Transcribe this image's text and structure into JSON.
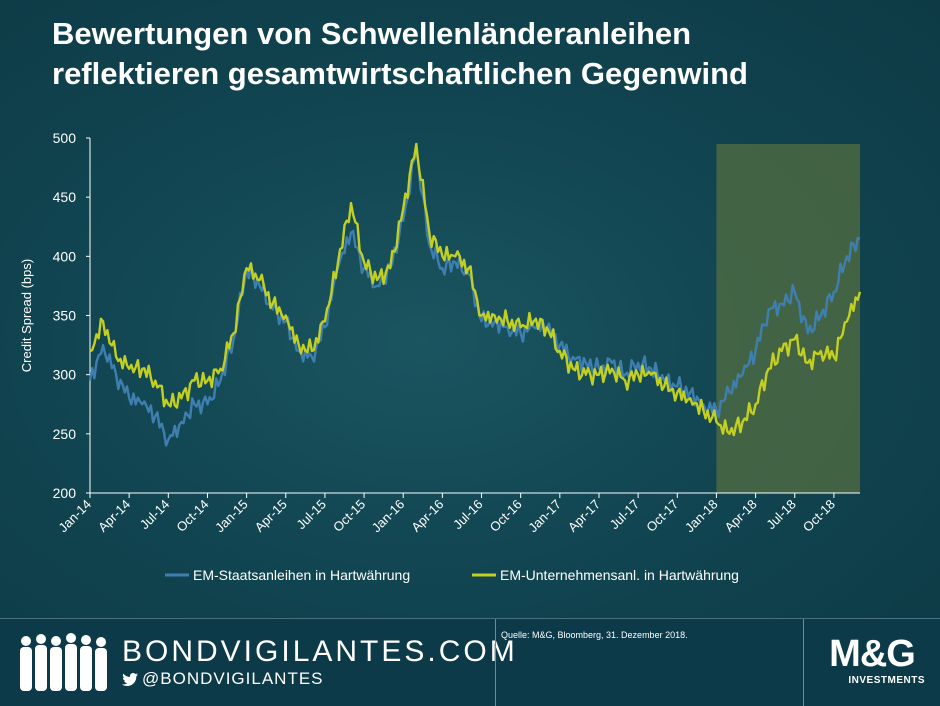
{
  "title_line1": "Bewertungen von Schwellenländeranleihen",
  "title_line2": "reflektieren gesamtwirtschaftlichen Gegenwind",
  "colors": {
    "sovereign": "#3f7fb0",
    "corporate": "#c3cf21",
    "highlight": "#6b7d3c"
  },
  "chart_data": {
    "type": "line",
    "ylabel": "Credit Spread (bps)",
    "xlabel": "",
    "ylim": [
      200,
      500
    ],
    "yticks": [
      200,
      250,
      300,
      350,
      400,
      450,
      500
    ],
    "x_start": "2014-01",
    "x_end": "2018-12",
    "xtick_labels": [
      "Jan-14",
      "Apr-14",
      "Jul-14",
      "Oct-14",
      "Jan-15",
      "Apr-15",
      "Jul-15",
      "Oct-15",
      "Jan-16",
      "Apr-16",
      "Jul-16",
      "Oct-16",
      "Jan-17",
      "Apr-17",
      "Jul-17",
      "Oct-17",
      "Jan-18",
      "Apr-18",
      "Jul-18",
      "Oct-18"
    ],
    "highlight_range": [
      "2018-01",
      "2018-12"
    ],
    "months": [
      "Jan-14",
      "Feb-14",
      "Mar-14",
      "Apr-14",
      "May-14",
      "Jun-14",
      "Jul-14",
      "Aug-14",
      "Sep-14",
      "Oct-14",
      "Nov-14",
      "Dec-14",
      "Jan-15",
      "Feb-15",
      "Mar-15",
      "Apr-15",
      "May-15",
      "Jun-15",
      "Jul-15",
      "Aug-15",
      "Sep-15",
      "Oct-15",
      "Nov-15",
      "Dec-15",
      "Jan-16",
      "Feb-16",
      "Mar-16",
      "Apr-16",
      "May-16",
      "Jun-16",
      "Jul-16",
      "Aug-16",
      "Sep-16",
      "Oct-16",
      "Nov-16",
      "Dec-16",
      "Jan-17",
      "Feb-17",
      "Mar-17",
      "Apr-17",
      "May-17",
      "Jun-17",
      "Jul-17",
      "Aug-17",
      "Sep-17",
      "Oct-17",
      "Nov-17",
      "Dec-17",
      "Jan-18",
      "Feb-18",
      "Mar-18",
      "Apr-18",
      "May-18",
      "Jun-18",
      "Jul-18",
      "Aug-18",
      "Sep-18",
      "Oct-18",
      "Nov-18",
      "Dec-18"
    ],
    "series": [
      {
        "name": "EM-Staatsanleihen in Hartwährung",
        "values": [
          295,
          325,
          300,
          280,
          275,
          265,
          245,
          260,
          275,
          275,
          295,
          330,
          390,
          375,
          355,
          345,
          320,
          315,
          340,
          390,
          420,
          390,
          375,
          390,
          430,
          490,
          410,
          390,
          395,
          385,
          345,
          345,
          340,
          335,
          340,
          340,
          325,
          315,
          310,
          305,
          310,
          300,
          310,
          305,
          295,
          290,
          285,
          275,
          270,
          285,
          300,
          320,
          355,
          360,
          370,
          335,
          350,
          370,
          400,
          415
        ]
      },
      {
        "name": "EM-Unternehmensanl. in Hartwährung",
        "values": [
          320,
          345,
          315,
          305,
          305,
          295,
          275,
          280,
          295,
          295,
          305,
          335,
          390,
          380,
          360,
          350,
          325,
          320,
          345,
          395,
          445,
          395,
          380,
          390,
          440,
          495,
          420,
          400,
          400,
          390,
          350,
          350,
          345,
          340,
          345,
          340,
          320,
          305,
          300,
          300,
          305,
          295,
          300,
          300,
          290,
          285,
          280,
          270,
          260,
          250,
          260,
          275,
          305,
          320,
          330,
          310,
          320,
          315,
          345,
          370
        ]
      }
    ]
  },
  "footer": {
    "brand": "BONDVIGILANTES.COM",
    "handle": "@BONDVIGILANTES",
    "source": "Quelle: M&G, Bloomberg, 31. Dezember 2018.",
    "logo_main": "M&G",
    "logo_sub": "INVESTMENTS"
  }
}
